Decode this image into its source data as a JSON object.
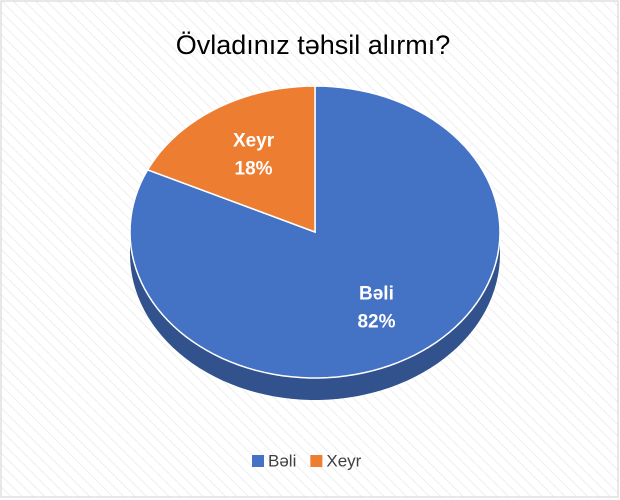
{
  "chart_data": {
    "type": "pie",
    "title": "Övladınız təhsil alırmı?",
    "categories": [
      "Bəli",
      "Xeyr"
    ],
    "values": [
      82,
      18
    ],
    "value_labels": [
      "82%",
      "18%"
    ],
    "colors": [
      "#4472c4",
      "#ed7d31"
    ],
    "legend": "bottom",
    "three_d": true
  }
}
